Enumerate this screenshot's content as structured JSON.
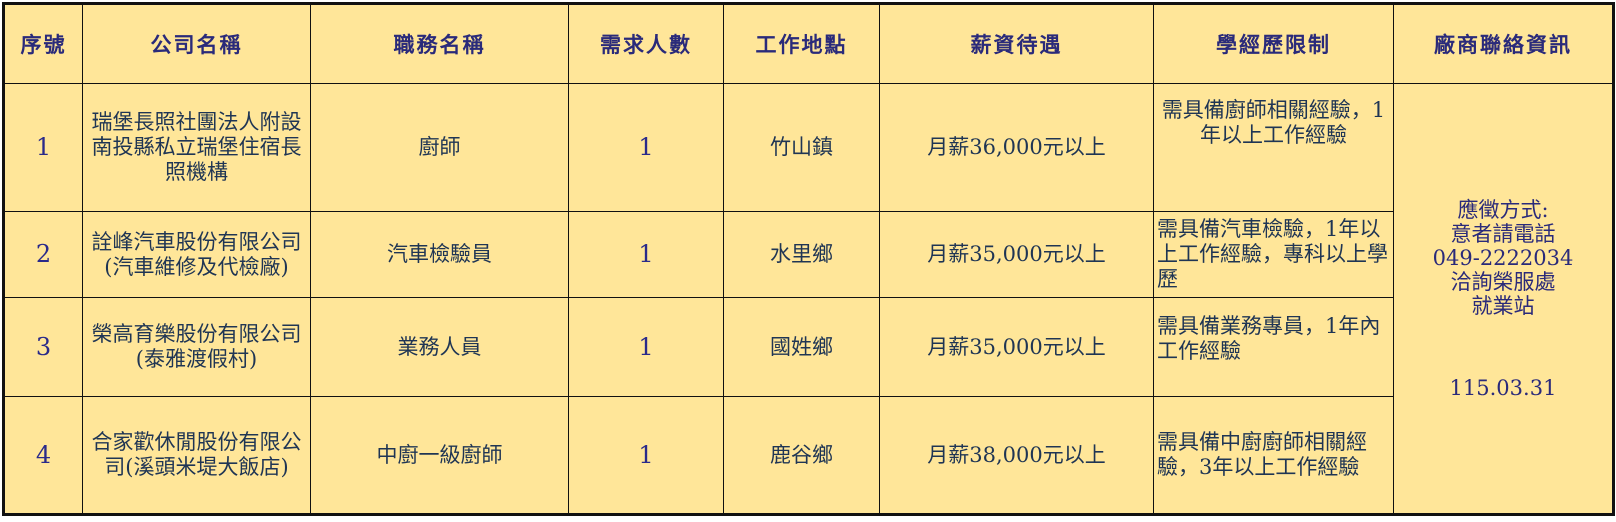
{
  "table": {
    "headers": [
      "序號",
      "公司名稱",
      "職務名稱",
      "需求人數",
      "工作地點",
      "薪資待遇",
      "學經歷限制",
      "廠商聯絡資訊"
    ],
    "rows": [
      {
        "no": "1",
        "company": "瑞堡長照社團法人附設南投縣私立瑞堡住宿長照機構",
        "job": "廚師",
        "count": "1",
        "location": "竹山鎮",
        "salary": "月薪36,000元以上",
        "requirements": "需具備廚師相關經驗，1年以上工作經驗"
      },
      {
        "no": "2",
        "company": "詮峰汽車股份有限公司(汽車維修及代檢廠)",
        "job": "汽車檢驗員",
        "count": "1",
        "location": "水里鄉",
        "salary": "月薪35,000元以上",
        "requirements": "需具備汽車檢驗，1年以上工作經驗，專科以上學歷"
      },
      {
        "no": "3",
        "company": "榮高育樂股份有限公司(泰雅渡假村)",
        "job": "業務人員",
        "count": "1",
        "location": "國姓鄉",
        "salary": "月薪35,000元以上",
        "requirements": "需具備業務專員，1年內工作經驗"
      },
      {
        "no": "4",
        "company": "合家歡休閒股份有限公司(溪頭米堤大飯店)",
        "job": "中廚一級廚師",
        "count": "1",
        "location": "鹿谷鄉",
        "salary": "月薪38,000元以上",
        "requirements": "需具備中廚廚師相關經驗，3年以上工作經驗"
      }
    ],
    "contact": {
      "line1": "應徵方式:",
      "line2": "意者請電話",
      "phone": "049-2222034",
      "line3": "洽詢榮服處",
      "line4": "就業站",
      "date": "115.03.31"
    }
  },
  "colors": {
    "background": "#FFE699",
    "header_text": "#2a2a7a",
    "border": "#111111"
  }
}
